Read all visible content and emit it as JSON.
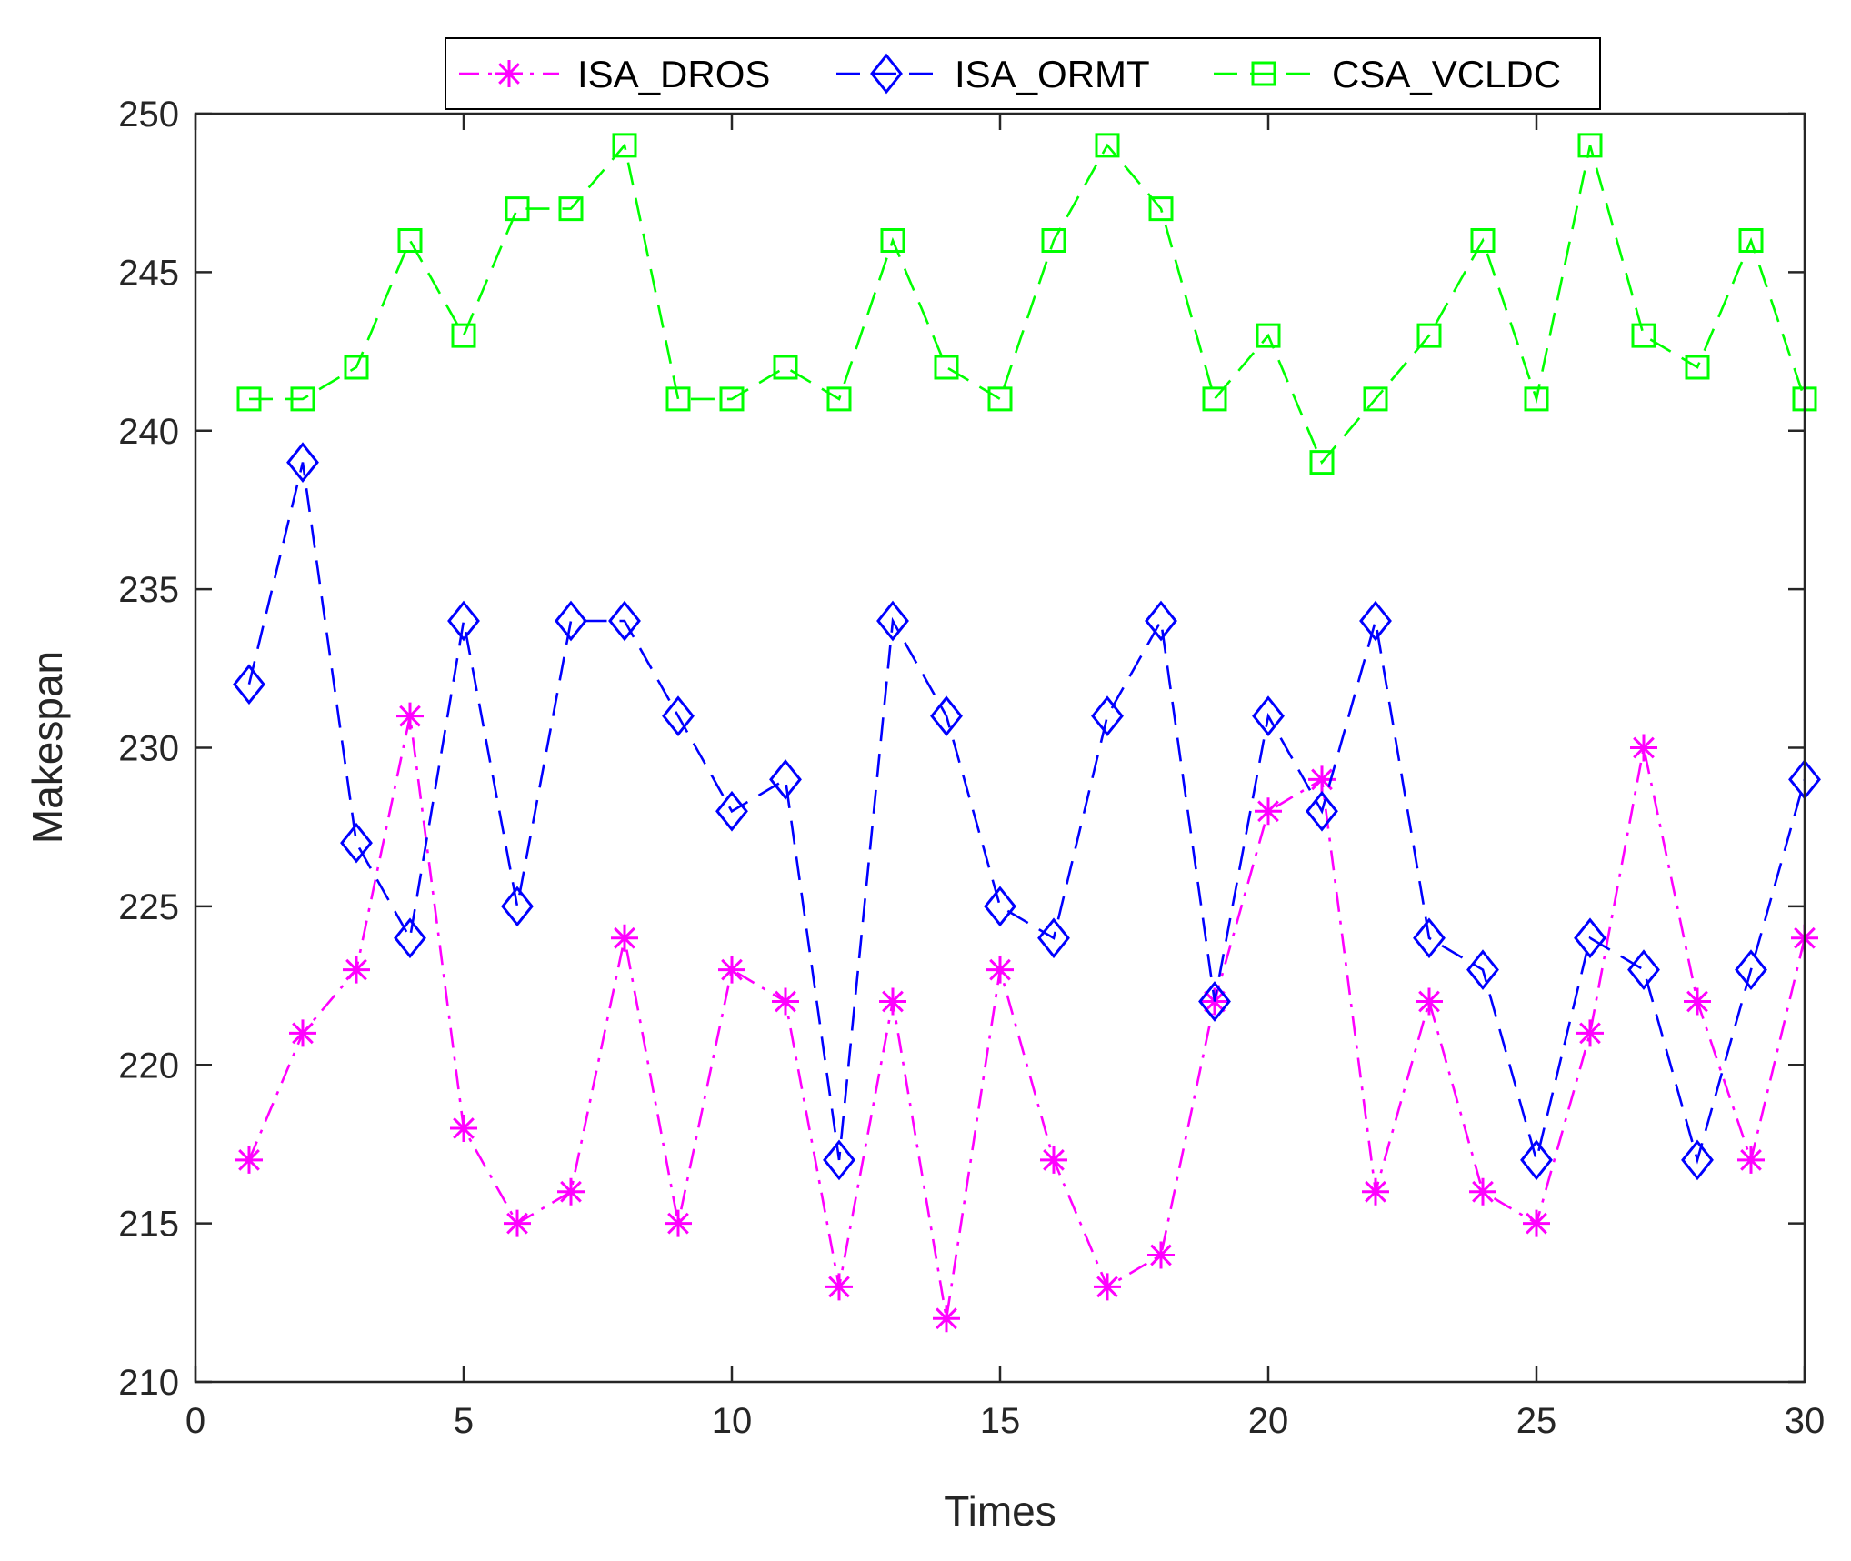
{
  "chart_data": {
    "type": "line",
    "title": "",
    "xlabel": "Times",
    "ylabel": "Makespan",
    "xlim": [
      0,
      30
    ],
    "ylim": [
      210,
      250
    ],
    "xticks": [
      0,
      5,
      10,
      15,
      20,
      25,
      30
    ],
    "yticks": [
      210,
      215,
      220,
      225,
      230,
      235,
      240,
      245,
      250
    ],
    "grid": false,
    "legend_position": "top-center-outside",
    "x": [
      1,
      2,
      3,
      4,
      5,
      6,
      7,
      8,
      9,
      10,
      11,
      12,
      13,
      14,
      15,
      16,
      17,
      18,
      19,
      20,
      21,
      22,
      23,
      24,
      25,
      26,
      27,
      28,
      29,
      30
    ],
    "series": [
      {
        "name": "ISA_DROS",
        "color": "#ff00ff",
        "marker": "asterisk",
        "linestyle": "dashdot",
        "values": [
          217,
          221,
          223,
          231,
          218,
          215,
          216,
          224,
          215,
          223,
          222,
          213,
          222,
          212,
          223,
          217,
          213,
          214,
          222,
          228,
          229,
          216,
          222,
          216,
          215,
          221,
          230,
          222,
          217,
          224
        ]
      },
      {
        "name": "ISA_ORMT",
        "color": "#0000ff",
        "marker": "diamond",
        "linestyle": "dashed",
        "values": [
          232,
          239,
          227,
          224,
          234,
          225,
          234,
          234,
          231,
          228,
          229,
          217,
          234,
          231,
          225,
          224,
          231,
          234,
          222,
          231,
          228,
          234,
          224,
          223,
          217,
          224,
          223,
          217,
          223,
          229
        ]
      },
      {
        "name": "CSA_VCLDC",
        "color": "#00ff00",
        "marker": "square",
        "linestyle": "dashed",
        "values": [
          241,
          241,
          242,
          246,
          243,
          247,
          247,
          249,
          241,
          241,
          242,
          241,
          246,
          242,
          241,
          246,
          249,
          247,
          241,
          243,
          239,
          241,
          243,
          246,
          241,
          249,
          243,
          242,
          246,
          241
        ]
      }
    ]
  }
}
